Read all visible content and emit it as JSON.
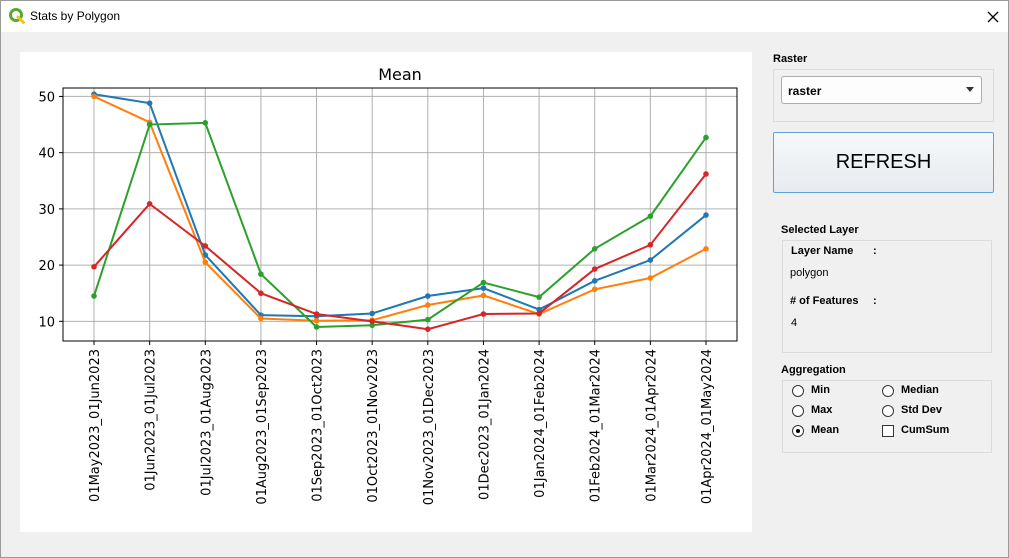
{
  "window": {
    "title": "Stats by Polygon"
  },
  "raster": {
    "label": "Raster",
    "selected": "raster"
  },
  "refresh": {
    "label": "REFRESH"
  },
  "selected_layer": {
    "label": "Selected Layer",
    "name_label": "Layer Name",
    "name_sep": ":",
    "name_value": "polygon",
    "features_label": "# of Features",
    "features_sep": ":",
    "features_value": "4"
  },
  "aggregation": {
    "label": "Aggregation",
    "options": [
      {
        "label": "Min",
        "type": "radio",
        "checked": false
      },
      {
        "label": "Max",
        "type": "radio",
        "checked": false
      },
      {
        "label": "Mean",
        "type": "radio",
        "checked": true
      },
      {
        "label": "Median",
        "type": "radio",
        "checked": false
      },
      {
        "label": "Std Dev",
        "type": "radio",
        "checked": false
      },
      {
        "label": "CumSum",
        "type": "checkbox",
        "checked": false
      }
    ]
  },
  "chart_data": {
    "type": "line",
    "title": "Mean",
    "xlabel": "",
    "ylabel": "",
    "ylim": [
      6.5,
      51.5
    ],
    "yticks": [
      10,
      20,
      30,
      40,
      50
    ],
    "grid": true,
    "categories": [
      "01May2023_01Jun2023",
      "01Jun2023_01Jul2023",
      "01Jul2023_01Aug2023",
      "01Aug2023_01Sep2023",
      "01Sep2023_01Oct2023",
      "01Oct2023_01Nov2023",
      "01Nov2023_01Dec2023",
      "01Dec2023_01Jan2024",
      "01Jan2024_01Feb2024",
      "01Feb2024_01Mar2024",
      "01Mar2024_01Apr2024",
      "01Apr2024_01May2024"
    ],
    "series": [
      {
        "color": "#1f77b4",
        "values": [
          50.4,
          48.8,
          21.8,
          11.1,
          10.9,
          11.4,
          14.5,
          15.9,
          12.1,
          17.2,
          20.9,
          28.9
        ]
      },
      {
        "color": "#ff7f0e",
        "values": [
          50.0,
          45.4,
          20.5,
          10.5,
          10.1,
          10.2,
          12.9,
          14.6,
          11.3,
          15.7,
          17.7,
          22.9
        ]
      },
      {
        "color": "#2ca02c",
        "values": [
          14.5,
          45.0,
          45.3,
          18.4,
          9.0,
          9.3,
          10.3,
          16.9,
          14.3,
          22.9,
          28.7,
          42.7
        ]
      },
      {
        "color": "#d62728",
        "values": [
          19.7,
          30.9,
          23.4,
          15.0,
          11.3,
          10.0,
          8.6,
          11.3,
          11.4,
          19.3,
          23.6,
          36.2
        ]
      }
    ]
  }
}
